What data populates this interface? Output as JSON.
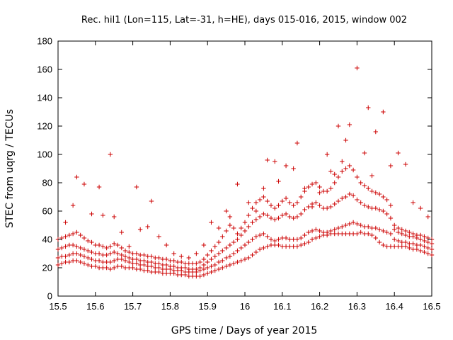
{
  "chart_data": {
    "type": "scatter",
    "title": "Rec. hil1 (Lon=115, Lat=-31, h=HE), days 015-016, 2015, window 002",
    "xlabel": "GPS time / Days of year 2015",
    "ylabel": "STEC from uqrg / TECUs",
    "xlim": [
      15.5,
      16.5
    ],
    "ylim": [
      0,
      180
    ],
    "xticks": [
      15.5,
      15.6,
      15.7,
      15.8,
      15.9,
      16.0,
      16.1,
      16.2,
      16.3,
      16.4,
      16.5
    ],
    "xtick_labels": [
      "15.5",
      "15.6",
      "15.7",
      "15.8",
      "15.9",
      "16",
      "16.1",
      "16.2",
      "16.3",
      "16.4",
      "16.5"
    ],
    "yticks": [
      0,
      20,
      40,
      60,
      80,
      100,
      120,
      140,
      160,
      180
    ],
    "grid": false,
    "legend": "none",
    "marker": "plus",
    "color": "#cc0000",
    "series": [
      {
        "x": [
          15.5,
          15.51,
          15.52,
          15.53,
          15.54,
          15.55,
          15.56,
          15.57,
          15.58,
          15.59,
          15.6,
          15.61,
          15.62,
          15.63,
          15.64,
          15.65,
          15.66,
          15.67,
          15.68,
          15.69,
          15.7,
          15.71,
          15.72,
          15.73,
          15.74,
          15.75,
          15.76,
          15.77,
          15.78,
          15.79,
          15.8,
          15.81,
          15.82,
          15.83,
          15.84,
          15.85,
          15.86,
          15.87,
          15.88,
          15.89,
          15.9,
          15.91,
          15.92,
          15.93,
          15.94,
          15.95,
          15.96,
          15.97,
          15.98,
          15.99,
          16.0,
          16.01,
          16.02,
          16.03,
          16.04,
          16.05,
          16.06,
          16.07,
          16.08,
          16.09,
          16.1,
          16.11,
          16.12,
          16.13,
          16.14,
          16.15,
          16.16,
          16.17,
          16.18,
          16.19,
          16.2,
          16.21,
          16.22,
          16.23,
          16.24,
          16.25,
          16.26,
          16.27,
          16.28,
          16.29,
          16.3,
          16.31,
          16.32,
          16.33,
          16.34,
          16.35,
          16.36,
          16.37,
          16.38,
          16.39,
          16.4,
          16.41,
          16.42,
          16.43,
          16.44,
          16.45,
          16.46,
          16.47,
          16.48,
          16.49,
          16.5
        ],
        "y": [
          22,
          23,
          24,
          24,
          25,
          25,
          24,
          23,
          22,
          21,
          21,
          20,
          20,
          20,
          19,
          20,
          21,
          21,
          20,
          20,
          20,
          19,
          19,
          18,
          18,
          17,
          17,
          17,
          16,
          16,
          16,
          16,
          15,
          15,
          15,
          14,
          14,
          14,
          14,
          15,
          16,
          17,
          18,
          19,
          20,
          21,
          22,
          23,
          24,
          25,
          26,
          27,
          29,
          31,
          33,
          34,
          35,
          36,
          36,
          36,
          35,
          35,
          35,
          35,
          35,
          36,
          37,
          38,
          40,
          41,
          42,
          43,
          43,
          44,
          44,
          44,
          44,
          44,
          44,
          44,
          44,
          45,
          44,
          44,
          43,
          41,
          38,
          36,
          35,
          35,
          35,
          35,
          35,
          35,
          34,
          33,
          33,
          32,
          31,
          30,
          29
        ]
      },
      {
        "x": [
          15.5,
          15.51,
          15.52,
          15.53,
          15.54,
          15.55,
          15.56,
          15.57,
          15.58,
          15.59,
          15.6,
          15.61,
          15.62,
          15.63,
          15.64,
          15.65,
          15.66,
          15.67,
          15.68,
          15.69,
          15.7,
          15.71,
          15.72,
          15.73,
          15.74,
          15.75,
          15.76,
          15.77,
          15.78,
          15.79,
          15.8,
          15.81,
          15.82,
          15.83,
          15.84,
          15.85,
          15.86,
          15.87,
          15.88,
          15.89,
          15.9,
          15.91,
          15.92,
          15.93,
          15.94,
          15.95,
          15.96,
          15.97,
          15.98,
          15.99,
          16.0,
          16.01,
          16.02,
          16.03,
          16.04,
          16.05,
          16.06,
          16.07,
          16.08,
          16.09,
          16.1,
          16.11,
          16.12,
          16.13,
          16.14,
          16.15,
          16.16,
          16.17,
          16.18,
          16.19,
          16.2,
          16.21,
          16.22,
          16.23,
          16.24,
          16.25,
          16.26,
          16.27,
          16.28,
          16.29,
          16.3,
          16.31,
          16.32,
          16.33,
          16.34,
          16.35,
          16.36,
          16.37,
          16.38,
          16.39,
          16.4,
          16.41,
          16.42,
          16.43,
          16.44,
          16.45,
          16.46,
          16.47,
          16.48,
          16.49,
          16.5
        ],
        "y": [
          27,
          28,
          28,
          29,
          30,
          30,
          29,
          28,
          27,
          26,
          25,
          25,
          24,
          24,
          24,
          25,
          26,
          26,
          25,
          24,
          23,
          23,
          22,
          22,
          21,
          21,
          20,
          20,
          19,
          19,
          19,
          18,
          18,
          18,
          17,
          17,
          17,
          17,
          18,
          19,
          20,
          21,
          22,
          24,
          25,
          27,
          28,
          30,
          32,
          34,
          36,
          38,
          40,
          42,
          43,
          44,
          42,
          40,
          39,
          40,
          41,
          41,
          40,
          40,
          40,
          41,
          43,
          45,
          46,
          47,
          46,
          45,
          45,
          46,
          47,
          48,
          49,
          50,
          51,
          52,
          51,
          50,
          49,
          49,
          48,
          48,
          47,
          46,
          45,
          44,
          40,
          39,
          38,
          38,
          37,
          37,
          36,
          36,
          35,
          34,
          33
        ]
      },
      {
        "x": [
          15.5,
          15.51,
          15.52,
          15.53,
          15.54,
          15.55,
          15.56,
          15.57,
          15.58,
          15.59,
          15.6,
          15.61,
          15.62,
          15.63,
          15.64,
          15.65,
          15.66,
          15.67,
          15.68,
          15.69,
          15.7,
          15.71,
          15.72,
          15.73,
          15.74,
          15.75,
          15.76,
          15.77,
          15.78,
          15.79,
          15.8,
          15.81,
          15.82,
          15.83,
          15.84,
          15.85,
          15.86,
          15.87,
          15.88,
          15.89,
          15.9,
          15.91,
          15.92,
          15.93,
          15.94,
          15.95,
          15.96,
          15.97,
          15.98,
          15.99,
          16.0,
          16.01,
          16.02,
          16.03,
          16.04,
          16.05,
          16.06,
          16.07,
          16.08,
          16.09,
          16.1,
          16.11,
          16.12,
          16.13,
          16.14,
          16.15,
          16.16,
          16.17,
          16.18,
          16.19,
          16.2,
          16.21,
          16.22,
          16.23,
          16.24,
          16.25,
          16.26,
          16.27,
          16.28,
          16.29,
          16.3,
          16.31,
          16.32,
          16.33,
          16.34,
          16.35,
          16.36,
          16.37,
          16.38,
          16.39,
          16.4,
          16.41,
          16.42,
          16.43,
          16.44,
          16.45,
          16.46,
          16.47,
          16.48,
          16.49,
          16.5
        ],
        "y": [
          33,
          34,
          35,
          36,
          36,
          35,
          34,
          33,
          32,
          31,
          30,
          30,
          29,
          29,
          30,
          31,
          30,
          29,
          28,
          27,
          26,
          26,
          25,
          25,
          24,
          24,
          23,
          23,
          22,
          22,
          21,
          21,
          20,
          20,
          20,
          19,
          19,
          19,
          20,
          22,
          24,
          26,
          28,
          30,
          32,
          34,
          36,
          38,
          40,
          43,
          46,
          49,
          52,
          54,
          56,
          58,
          57,
          55,
          54,
          55,
          57,
          58,
          56,
          55,
          56,
          58,
          61,
          63,
          65,
          66,
          64,
          62,
          62,
          63,
          65,
          67,
          69,
          70,
          72,
          71,
          68,
          66,
          64,
          63,
          62,
          62,
          61,
          60,
          58,
          55,
          47,
          45,
          44,
          43,
          42,
          42,
          41,
          40,
          39,
          38,
          37
        ]
      },
      {
        "x": [
          15.5,
          15.51,
          15.52,
          15.53,
          15.54,
          15.55,
          15.56,
          15.57,
          15.58,
          15.59,
          15.6,
          15.61,
          15.62,
          15.63,
          15.64,
          15.65,
          15.66,
          15.67,
          15.68,
          15.69,
          15.7,
          15.71,
          15.72,
          15.73,
          15.74,
          15.75,
          15.76,
          15.77,
          15.78,
          15.79,
          15.8,
          15.81,
          15.82,
          15.83,
          15.84,
          15.85,
          15.86,
          15.87,
          15.88,
          15.89,
          15.9,
          15.91,
          15.92,
          15.93,
          15.94,
          15.95,
          15.96,
          15.97,
          15.98,
          15.99,
          16.0,
          16.01,
          16.02,
          16.03,
          16.04,
          16.05,
          16.06,
          16.07,
          16.08,
          16.09,
          16.1,
          16.11,
          16.12,
          16.13,
          16.14,
          16.15,
          16.16,
          16.17,
          16.18,
          16.19,
          16.2,
          16.21,
          16.22,
          16.23,
          16.24,
          16.25,
          16.26,
          16.27,
          16.28,
          16.29,
          16.3,
          16.31,
          16.32,
          16.33,
          16.34,
          16.35,
          16.36,
          16.37,
          16.38,
          16.39,
          16.4,
          16.41,
          16.42,
          16.43,
          16.44,
          16.45,
          16.46,
          16.47,
          16.48,
          16.49,
          16.5
        ],
        "y": [
          40,
          41,
          42,
          43,
          44,
          45,
          43,
          41,
          39,
          38,
          36,
          36,
          35,
          34,
          35,
          37,
          36,
          34,
          32,
          31,
          30,
          30,
          29,
          29,
          28,
          28,
          27,
          27,
          26,
          26,
          25,
          25,
          24,
          24,
          23,
          23,
          23,
          23,
          24,
          26,
          29,
          32,
          35,
          38,
          42,
          46,
          50,
          48,
          44,
          48,
          52,
          57,
          62,
          66,
          68,
          70,
          67,
          64,
          62,
          64,
          67,
          69,
          66,
          64,
          66,
          70,
          74,
          77,
          79,
          80,
          77,
          74,
          74,
          76,
          80,
          84,
          88,
          90,
          92,
          89,
          84,
          80,
          78,
          76,
          74,
          73,
          72,
          70,
          68,
          64,
          50,
          48,
          47,
          46,
          45,
          44,
          43,
          43,
          42,
          41,
          40
        ]
      },
      {
        "x": [
          15.52,
          15.54,
          15.55,
          15.57,
          15.59,
          15.61,
          15.62,
          15.64,
          15.65,
          15.67,
          15.69,
          15.71,
          15.72,
          15.74,
          15.75,
          15.77,
          15.79,
          15.81,
          15.83,
          15.85,
          15.87,
          15.89,
          15.91,
          15.93,
          15.95,
          15.96,
          15.98,
          16.01,
          16.03,
          16.05,
          16.06,
          16.08,
          16.09,
          16.11,
          16.13,
          16.14,
          16.16,
          16.18,
          16.2,
          16.22,
          16.23,
          16.24,
          16.25,
          16.26,
          16.27,
          16.28,
          16.3,
          16.32,
          16.33,
          16.34,
          16.35,
          16.37,
          16.39,
          16.41,
          16.43,
          16.45,
          16.47,
          16.49
        ],
        "y": [
          52,
          64,
          84,
          79,
          58,
          77,
          57,
          100,
          56,
          45,
          35,
          77,
          47,
          49,
          67,
          42,
          36,
          30,
          28,
          27,
          30,
          36,
          52,
          48,
          60,
          56,
          79,
          66,
          60,
          76,
          96,
          95,
          81,
          92,
          90,
          108,
          76,
          63,
          73,
          100,
          88,
          86,
          120,
          95,
          110,
          121,
          161,
          101,
          133,
          85,
          116,
          130,
          92,
          101,
          93,
          66,
          62,
          56
        ]
      }
    ]
  }
}
